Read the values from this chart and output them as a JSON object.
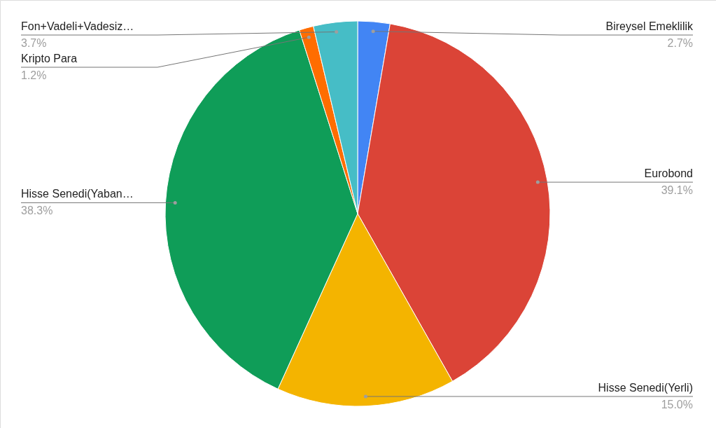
{
  "chart_data": {
    "type": "pie",
    "categories": [
      "Bireysel Emeklilik",
      "Eurobond",
      "Hisse Senedi(Yerli)",
      "Hisse Senedi(Yaban…",
      "Kripto Para",
      "Fon+Vadeli+Vadesiz…"
    ],
    "values": [
      2.7,
      39.1,
      15.0,
      38.3,
      1.2,
      3.7
    ],
    "colors": [
      "#4285f4",
      "#db4437",
      "#f4b400",
      "#0f9d58",
      "#ff6d00",
      "#46bdc6"
    ],
    "value_labels": [
      "2.7%",
      "39.1%",
      "15.0%",
      "38.3%",
      "1.2%",
      "3.7%"
    ],
    "legend": false
  }
}
